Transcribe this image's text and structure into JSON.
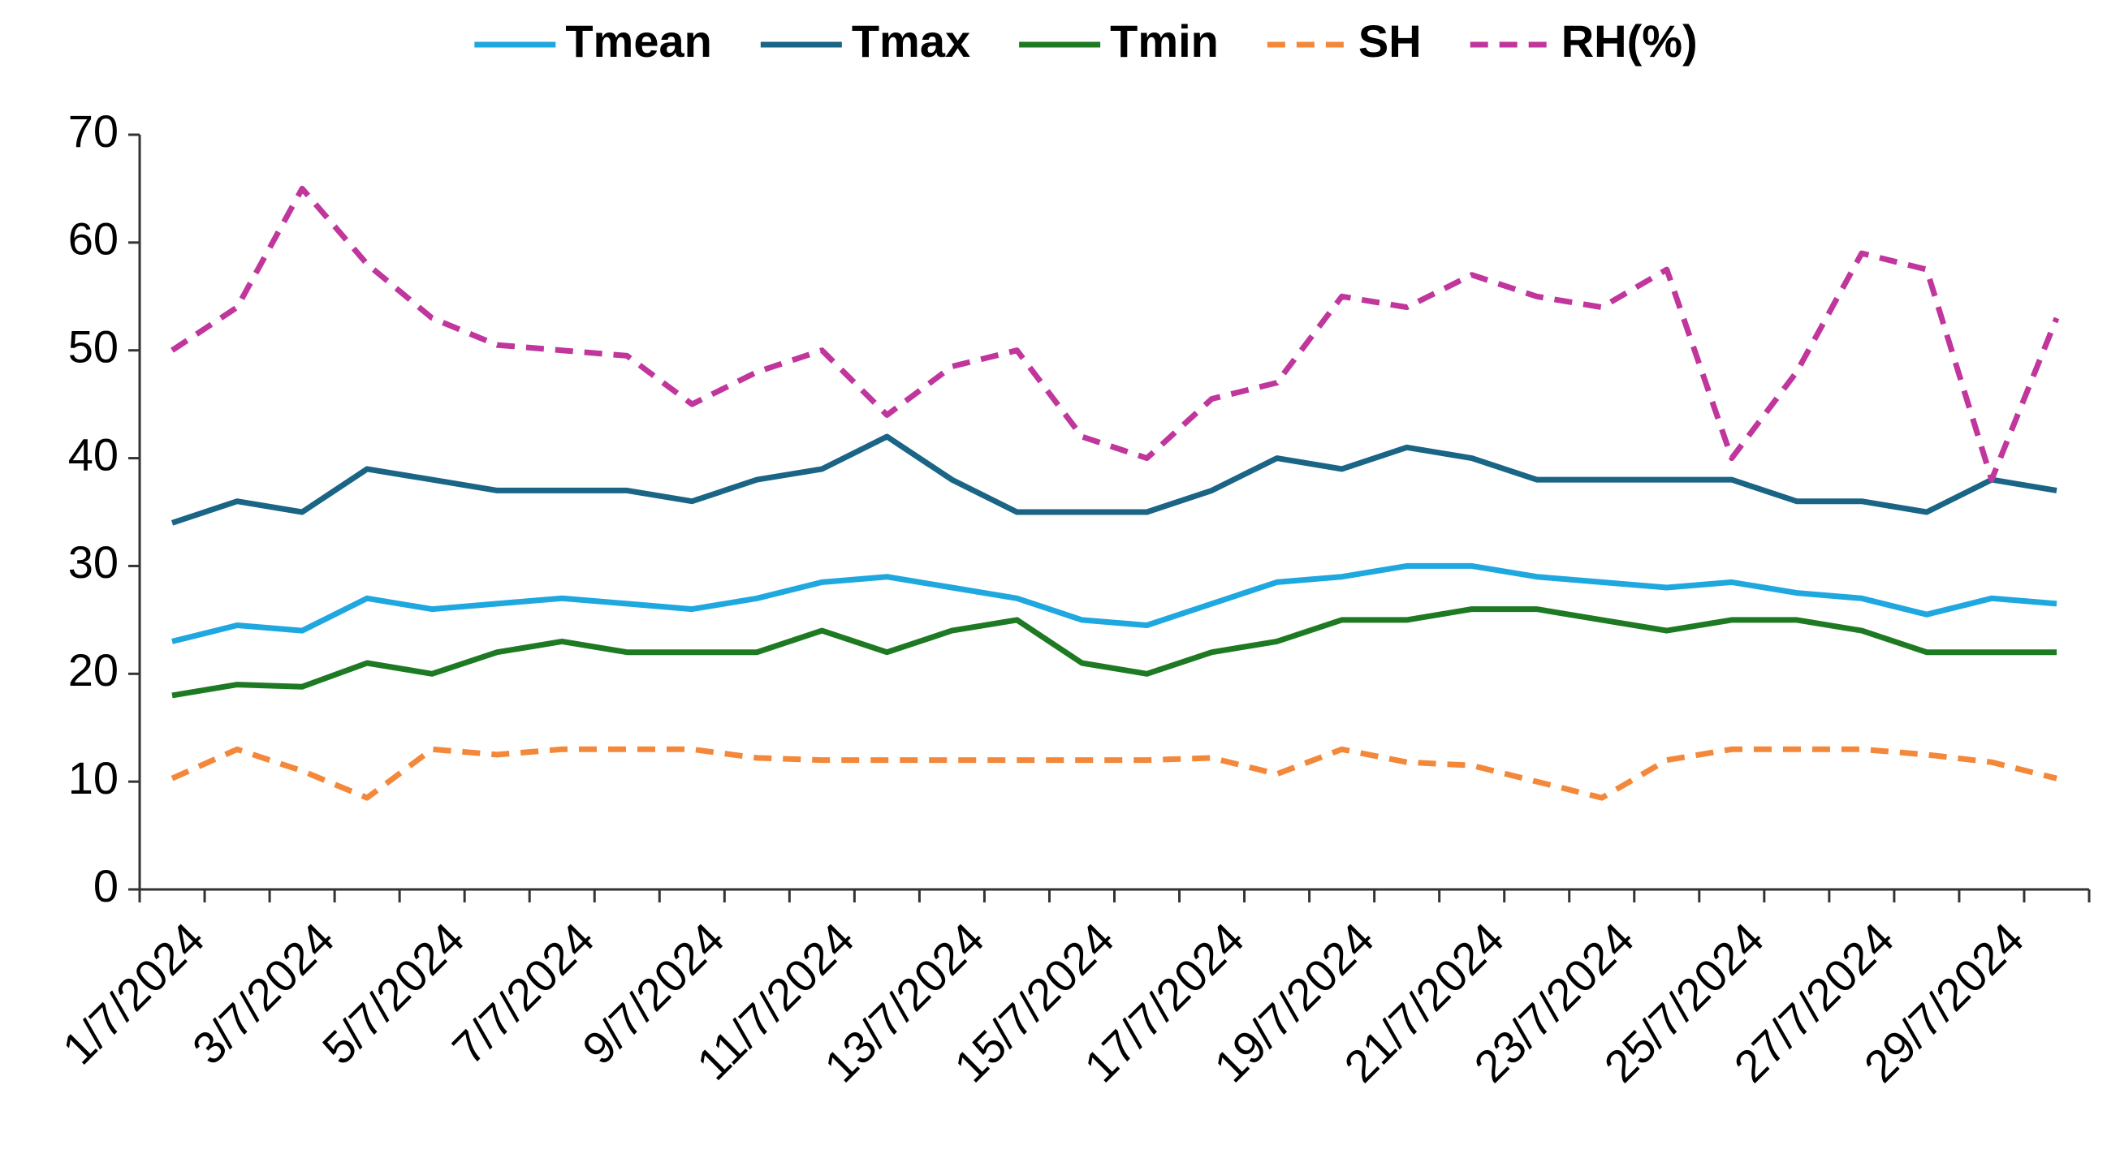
{
  "chart_data": {
    "type": "line",
    "categories": [
      "1/7/2024",
      null,
      "3/7/2024",
      null,
      "5/7/2024",
      null,
      "7/7/2024",
      null,
      "9/7/2024",
      null,
      "11/7/2024",
      null,
      "13/7/2024",
      null,
      "15/7/2024",
      null,
      "17/7/2024",
      null,
      "19/7/2024",
      null,
      "21/7/2024",
      null,
      "23/7/2024",
      null,
      "25/7/2024",
      null,
      "27/7/2024",
      null,
      "29/7/2024",
      null
    ],
    "series": [
      {
        "name": "Tmean",
        "color": "#1fa8df",
        "dashed": false,
        "values": [
          23,
          24.5,
          24,
          27,
          26,
          26.5,
          27,
          26.5,
          26,
          27,
          28.5,
          29,
          28,
          27,
          25,
          24.5,
          26.5,
          28.5,
          29,
          30,
          30,
          29,
          28.5,
          28,
          28.5,
          27.5,
          27,
          25.5,
          27,
          26.5
        ]
      },
      {
        "name": "Tmax",
        "color": "#1a6585",
        "dashed": false,
        "values": [
          34,
          36,
          35,
          39,
          38,
          37,
          37,
          37,
          36,
          38,
          39,
          42,
          38,
          35,
          35,
          35,
          37,
          40,
          39,
          41,
          40,
          38,
          38,
          38,
          38,
          36,
          36,
          35,
          38,
          37
        ]
      },
      {
        "name": "Tmin",
        "color": "#1e7a22",
        "dashed": false,
        "values": [
          18,
          19,
          18.8,
          21,
          20,
          22,
          23,
          22,
          22,
          22,
          24,
          22,
          24,
          25,
          21,
          20,
          22,
          23,
          25,
          25,
          26,
          26,
          25,
          24,
          25,
          25,
          24,
          22,
          22,
          22
        ]
      },
      {
        "name": "SH",
        "color": "#f4883a",
        "dashed": true,
        "values": [
          10.3,
          13,
          11,
          8.5,
          13,
          12.5,
          13,
          13,
          13,
          12.2,
          12,
          12,
          12,
          12,
          12,
          12,
          12.2,
          10.7,
          13,
          11.8,
          11.5,
          10,
          8.5,
          12,
          13,
          13,
          13,
          12.5,
          11.8,
          10.3
        ]
      },
      {
        "name": "RH(%)",
        "color": "#c0369c",
        "dashed": true,
        "values": [
          50,
          54,
          65,
          58,
          53,
          50.5,
          50,
          49.5,
          45,
          48,
          50,
          44,
          48.5,
          50,
          42,
          40,
          45.5,
          47,
          55,
          54,
          57,
          55,
          54,
          57.5,
          40,
          48,
          59,
          57.5,
          38,
          53
        ]
      }
    ],
    "ylim": [
      0,
      70
    ],
    "yticks": [
      0,
      10,
      20,
      30,
      40,
      50,
      60,
      70
    ],
    "grid": false,
    "legend": "top"
  }
}
